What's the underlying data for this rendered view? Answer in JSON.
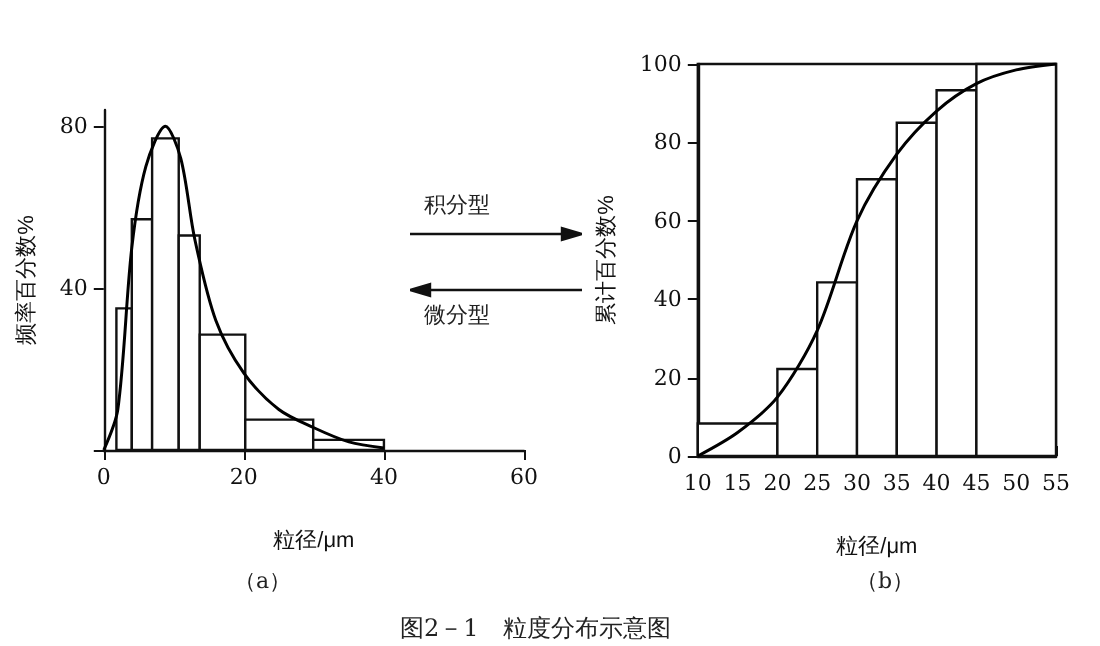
{
  "chart_data": [
    {
      "type": "histogram",
      "xlabel": "粒径/μm",
      "ylabel": "频率百分数%",
      "annotations": [
        "（a）",
        "积分型",
        "微分型",
        "图2－1　粒度分布示意图"
      ],
      "xlim": [
        0,
        60
      ],
      "xticks": [
        0,
        20,
        40,
        60
      ],
      "ylim": [
        0,
        84
      ],
      "yticks": [
        {
          "value": 0,
          "label": null
        },
        40,
        80
      ],
      "grid": false,
      "series": [
        {
          "color": "#ffffff",
          "bins": [
            1.8,
            4,
            6.9,
            10.7,
            13.7,
            20.2,
            29.9,
            40
          ],
          "values": [
            35,
            57,
            77,
            53,
            28.5,
            7.5,
            2.5
          ]
        },
        {
          "type": "line",
          "color": "#000000",
          "x": [
            0,
            2,
            4,
            6,
            8.8,
            11,
            13,
            16,
            20,
            25,
            30,
            35,
            40
          ],
          "values": [
            0,
            10,
            50,
            70,
            80,
            72,
            52,
            32,
            19,
            10,
            5.5,
            2,
            0.5
          ]
        }
      ]
    },
    {
      "type": "histogram",
      "xlabel": "粒径/μm",
      "ylabel": "累计百分数%",
      "annotations": [
        "（b）"
      ],
      "xlim": [
        10,
        55
      ],
      "xticks": [
        10,
        15,
        20,
        25,
        30,
        35,
        40,
        45,
        50,
        55
      ],
      "ylim": [
        0,
        100
      ],
      "yticks": [
        0,
        20,
        40,
        60,
        80,
        100
      ],
      "grid": false,
      "series": [
        {
          "color": "#ffffff",
          "bins": [
            10,
            20,
            25,
            30,
            35,
            40,
            45,
            55
          ],
          "values": [
            8.3,
            22.2,
            44.3,
            70.6,
            85,
            93.3,
            100
          ]
        },
        {
          "type": "line",
          "color": "#000000",
          "x": [
            10,
            15,
            20,
            25,
            30,
            35,
            40,
            45,
            50,
            55
          ],
          "values": [
            0,
            6,
            15,
            32,
            60,
            77,
            88,
            95,
            98.5,
            100
          ]
        }
      ]
    }
  ]
}
